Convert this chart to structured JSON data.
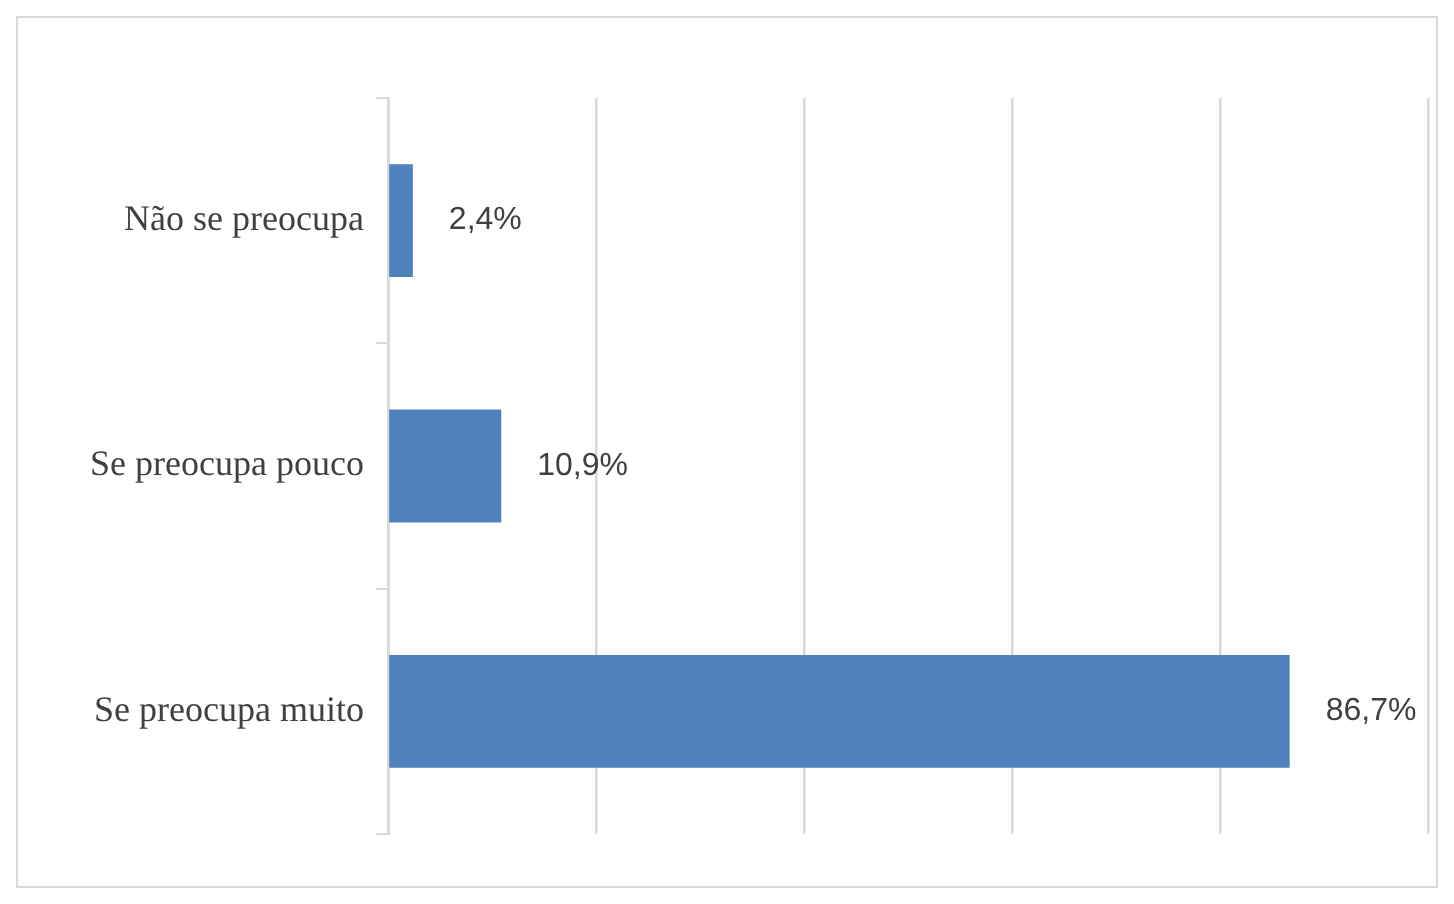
{
  "chart_data": {
    "type": "bar",
    "orientation": "horizontal",
    "categories": [
      "Não se preocupa",
      "Se preocupa pouco",
      "Se preocupa muito"
    ],
    "values": [
      2.4,
      10.9,
      86.7
    ],
    "color": "#4f81bd",
    "value_labels": [
      "2,4%",
      "10,9%",
      "86,7%"
    ],
    "xlim": [
      0,
      100
    ],
    "xticks": [
      {
        "value": 0,
        "label": null
      },
      {
        "value": 20,
        "label": null
      },
      {
        "value": 40,
        "label": null
      },
      {
        "value": 60,
        "label": null
      },
      {
        "value": 80,
        "label": null
      },
      {
        "value": 100,
        "label": null
      }
    ],
    "grid": "x",
    "tick_labels": "y",
    "legend": false
  }
}
